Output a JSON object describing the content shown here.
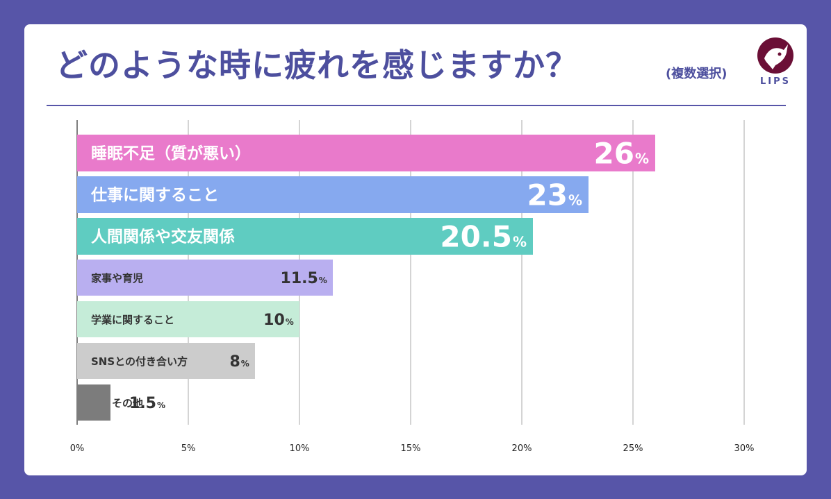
{
  "header": {
    "title": "どのような時に疲れを感じますか？",
    "subtitle": "(複数選択)"
  },
  "logo": {
    "text": "LIPS",
    "icon": "deer-head-icon"
  },
  "chart_data": {
    "type": "bar",
    "orientation": "horizontal",
    "title": "どのような時に疲れを感じますか？",
    "categories": [
      "睡眠不足（質が悪い）",
      "仕事に関すること",
      "人間関係や交友関係",
      "家事や育児",
      "学業に関すること",
      "SNSとの付き合い方",
      "その他"
    ],
    "values": [
      26,
      23,
      20.5,
      11.5,
      10,
      8,
      1.5
    ],
    "value_labels": [
      "26",
      "23",
      "20.5",
      "11.5",
      "10",
      "8",
      "1.5"
    ],
    "unit": "%",
    "colors": [
      "#e97acb",
      "#86a9ef",
      "#5fccc1",
      "#b9aff0",
      "#c5ecd8",
      "#cccccc",
      "#7c7c7c"
    ],
    "xlim": [
      0,
      30
    ],
    "ticks": [
      0,
      5,
      10,
      15,
      20,
      25,
      30
    ],
    "tick_labels": [
      "0%",
      "5%",
      "10%",
      "15%",
      "20%",
      "25%",
      "30%"
    ],
    "grid": true
  }
}
